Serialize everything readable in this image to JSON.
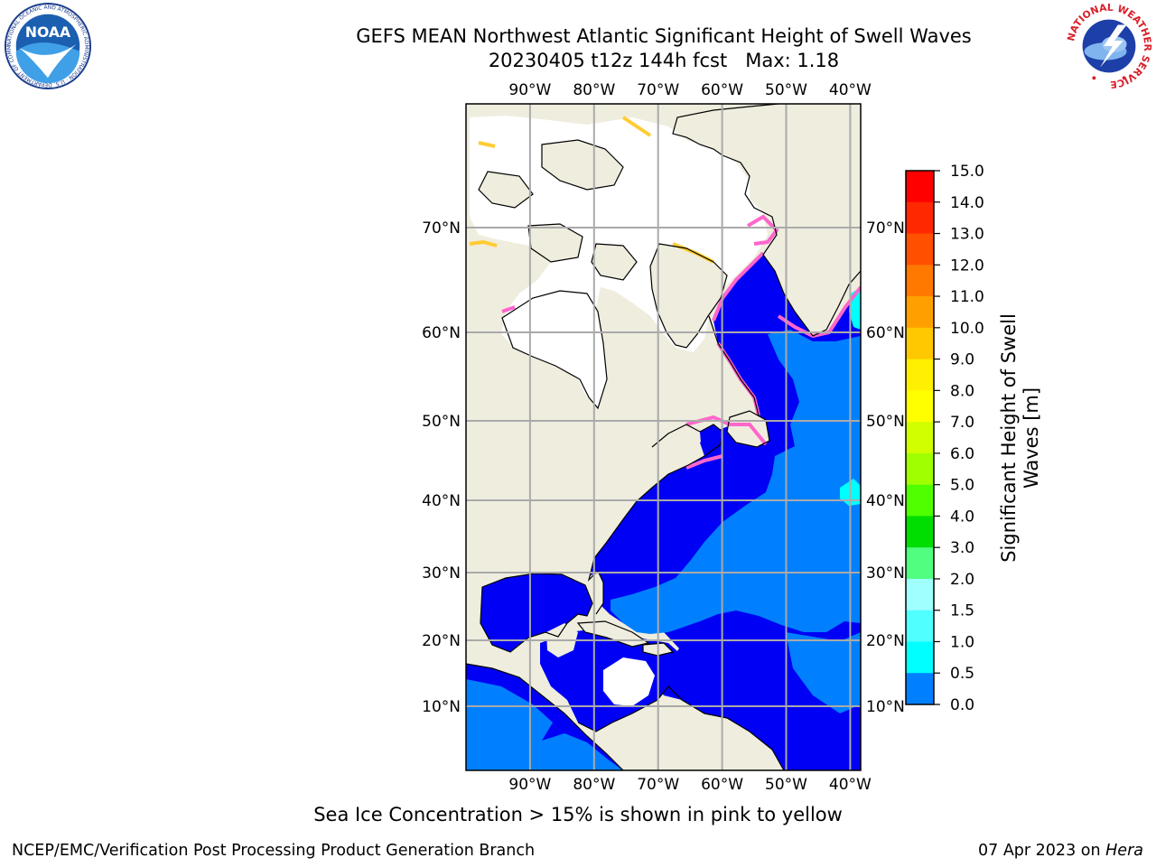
{
  "title": {
    "line1": "GEFS MEAN Northwest Atlantic Significant Height of Swell Waves",
    "line2": "20230405 t12z 144h fcst   Max: 1.18"
  },
  "map": {
    "lon_labels": [
      "90°W",
      "80°W",
      "70°W",
      "60°W",
      "50°W",
      "40°W"
    ],
    "lon_values": [
      -90,
      -80,
      -70,
      -60,
      -50,
      -40
    ],
    "lat_labels": [
      "70°N",
      "60°N",
      "50°N",
      "40°N",
      "30°N",
      "20°N",
      "10°N"
    ],
    "lat_values": [
      70,
      60,
      50,
      40,
      30,
      20,
      10
    ],
    "colors": {
      "land": "#efedde",
      "ice_free_white": "#ffffff",
      "swell_0_0p5": "#0000f5",
      "swell_0p5_1": "#0080ff",
      "swell_1_1p5": "#00ffff",
      "sea_ice_pink": "#ff66cc",
      "sea_ice_yellow": "#ffcc33",
      "gridline": "#aaaaaa"
    }
  },
  "colorbar": {
    "label_line1": "Significant Height of Swell",
    "label_line2": "Waves [m]",
    "ticks": [
      "15.0",
      "14.0",
      "13.0",
      "12.0",
      "11.0",
      "10.0",
      "9.0",
      "8.0",
      "7.0",
      "6.0",
      "5.0",
      "4.0",
      "3.0",
      "2.0",
      "1.5",
      "1.0",
      "0.5",
      "0.0"
    ],
    "segment_colors": [
      "#ff0000",
      "#ff2800",
      "#ff5000",
      "#ff7800",
      "#ffa000",
      "#ffc800",
      "#ffef00",
      "#ffff00",
      "#d2ff00",
      "#a0ff00",
      "#50ff00",
      "#00dd00",
      "#50ff80",
      "#a0ffff",
      "#50ffff",
      "#00ffff",
      "#0080ff",
      "#0000ff"
    ]
  },
  "note": "Sea Ice Concentration > 15% is shown in pink to yellow",
  "footer": {
    "left": "NCEP/EMC/Verification Post Processing Product Generation Branch",
    "right_prefix": "07 Apr 2023 on ",
    "right_machine": "Hera"
  },
  "logos": {
    "noaa_text": "NOAA",
    "noaa_ring_text": "NATIONAL OCEANIC AND ATMOSPHERIC ADMINISTRATION · U.S. DEPARTMENT OF COMMERCE",
    "nws_ring_text": "NATIONAL WEATHER SERVICE"
  }
}
